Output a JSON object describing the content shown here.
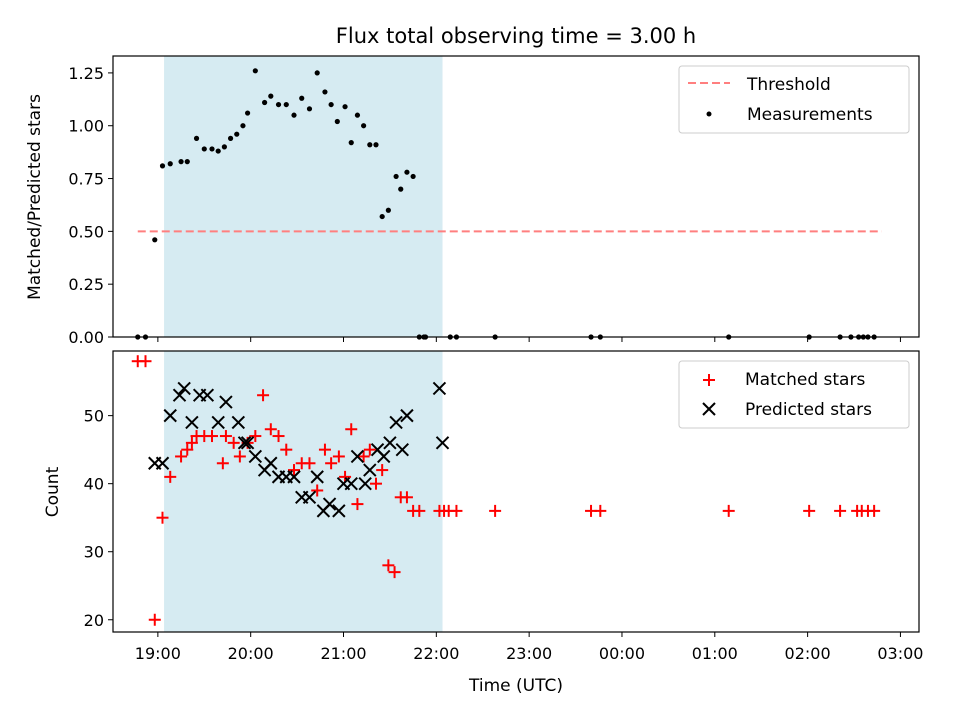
{
  "figure": {
    "title": "Flux total observing time = 3.00 h",
    "xlabel": "Time (UTC)"
  },
  "colors": {
    "shade": "#add8e6",
    "threshold": "#ff7f7f",
    "measurements": "#000000",
    "matched": "#ff0000",
    "predicted": "#000000"
  },
  "chart_data": [
    {
      "type": "scatter",
      "ylabel": "Matched/Predicted stars",
      "xlim": [
        "18:31",
        "03:12"
      ],
      "ylim": [
        0,
        1.33
      ],
      "yticks": [
        0.0,
        0.25,
        0.5,
        0.75,
        1.0,
        1.25
      ],
      "ytick_labels": [
        "0.00",
        "0.25",
        "0.50",
        "0.75",
        "1.00",
        "1.25"
      ],
      "xticks": [
        "19:00",
        "20:00",
        "21:00",
        "22:00",
        "23:00",
        "00:00",
        "01:00",
        "02:00",
        "03:00"
      ],
      "xtick_labels_shown": false,
      "shaded_span": [
        "19:04",
        "22:04"
      ],
      "legend": {
        "placement": "upper right",
        "entries": [
          "Threshold",
          "Measurements"
        ]
      },
      "series": [
        {
          "name": "Threshold",
          "kind": "dashed-line",
          "x": [
            "18:47",
            "02:48"
          ],
          "y": [
            0.5,
            0.5
          ]
        },
        {
          "name": "Measurements",
          "kind": "dot",
          "x": [
            "18:47",
            "18:52",
            "18:58",
            "19:03",
            "19:08",
            "19:15",
            "19:19",
            "19:25",
            "19:30",
            "19:35",
            "19:39",
            "19:43",
            "19:47",
            "19:51",
            "19:55",
            "19:58",
            "20:03",
            "20:09",
            "20:13",
            "20:18",
            "20:23",
            "20:28",
            "20:33",
            "20:38",
            "20:43",
            "20:48",
            "20:52",
            "20:56",
            "21:01",
            "21:05",
            "21:09",
            "21:13",
            "21:17",
            "21:21",
            "21:25",
            "21:29",
            "21:34",
            "21:37",
            "21:41",
            "21:45",
            "21:49",
            "21:52",
            "21:53",
            "22:09",
            "22:13",
            "22:38",
            "23:40",
            "23:46",
            "01:09",
            "02:01",
            "02:21",
            "02:28",
            "02:33",
            "02:36",
            "02:39",
            "02:43"
          ],
          "y": [
            0,
            0,
            0.46,
            0.81,
            0.82,
            0.83,
            0.83,
            0.94,
            0.89,
            0.89,
            0.88,
            0.9,
            0.94,
            0.96,
            1.0,
            1.06,
            1.26,
            1.11,
            1.14,
            1.1,
            1.1,
            1.05,
            1.13,
            1.08,
            1.25,
            1.16,
            1.1,
            1.02,
            1.09,
            0.92,
            1.05,
            1.0,
            0.91,
            0.91,
            0.57,
            0.6,
            0.76,
            0.7,
            0.78,
            0.76,
            0,
            0,
            0,
            0,
            0,
            0,
            0,
            0,
            0,
            0,
            0,
            0,
            0,
            0,
            0,
            0
          ]
        }
      ]
    },
    {
      "type": "scatter",
      "ylabel": "Count",
      "xlim": [
        "18:31",
        "03:12"
      ],
      "ylim": [
        18.2,
        59.5
      ],
      "yticks": [
        20,
        30,
        40,
        50
      ],
      "ytick_labels": [
        "20",
        "30",
        "40",
        "50"
      ],
      "xticks": [
        "19:00",
        "20:00",
        "21:00",
        "22:00",
        "23:00",
        "00:00",
        "01:00",
        "02:00",
        "03:00"
      ],
      "xtick_labels": [
        "19:00",
        "20:00",
        "21:00",
        "22:00",
        "23:00",
        "00:00",
        "01:00",
        "02:00",
        "03:00"
      ],
      "shaded_span": [
        "19:04",
        "22:04"
      ],
      "legend": {
        "placement": "upper right",
        "entries": [
          "Matched stars",
          "Predicted stars"
        ]
      },
      "series": [
        {
          "name": "Matched stars",
          "marker": "+",
          "x": [
            "18:47",
            "18:52",
            "18:58",
            "19:03",
            "19:08",
            "19:15",
            "19:19",
            "19:22",
            "19:25",
            "19:30",
            "19:35",
            "19:42",
            "19:44",
            "19:49",
            "19:53",
            "19:58",
            "20:03",
            "20:08",
            "20:13",
            "20:18",
            "20:23",
            "20:28",
            "20:33",
            "20:38",
            "20:43",
            "20:48",
            "20:52",
            "20:57",
            "21:01",
            "21:05",
            "21:09",
            "21:13",
            "21:17",
            "21:21",
            "21:25",
            "21:29",
            "21:33",
            "21:37",
            "21:41",
            "21:45",
            "21:49",
            "22:02",
            "22:05",
            "22:08",
            "22:13",
            "22:38",
            "23:40",
            "23:46",
            "01:09",
            "02:01",
            "02:21",
            "02:32",
            "02:35",
            "02:39",
            "02:43"
          ],
          "y": [
            58,
            58,
            20,
            35,
            41,
            44,
            45,
            46,
            47,
            47,
            47,
            43,
            47,
            46,
            44,
            46,
            47,
            53,
            48,
            47,
            45,
            42,
            43,
            43,
            39,
            45,
            43,
            44,
            41,
            48,
            37,
            44,
            45,
            40,
            42,
            28,
            27,
            38,
            38,
            36,
            36,
            36,
            36,
            36,
            36,
            36,
            36,
            36,
            36,
            36,
            36,
            36,
            36,
            36,
            36
          ]
        },
        {
          "name": "Predicted stars",
          "marker": "x",
          "x": [
            "18:58",
            "19:03",
            "19:08",
            "19:14",
            "19:17",
            "19:22",
            "19:27",
            "19:32",
            "19:39",
            "19:44",
            "19:52",
            "19:56",
            "19:58",
            "20:03",
            "20:09",
            "20:13",
            "20:18",
            "20:23",
            "20:28",
            "20:33",
            "20:38",
            "20:43",
            "20:47",
            "20:51",
            "20:57",
            "21:00",
            "21:05",
            "21:09",
            "21:14",
            "21:17",
            "21:22",
            "21:26",
            "21:30",
            "21:34",
            "21:38",
            "21:41",
            "22:02",
            "22:04"
          ],
          "y": [
            43,
            43,
            50,
            53,
            54,
            49,
            53,
            53,
            49,
            52,
            49,
            46,
            46,
            44,
            42,
            43,
            41,
            41,
            41,
            38,
            38,
            41,
            36,
            37,
            36,
            40,
            40,
            44,
            40,
            42,
            45,
            44,
            46,
            49,
            45,
            50,
            54,
            46
          ]
        }
      ]
    }
  ]
}
